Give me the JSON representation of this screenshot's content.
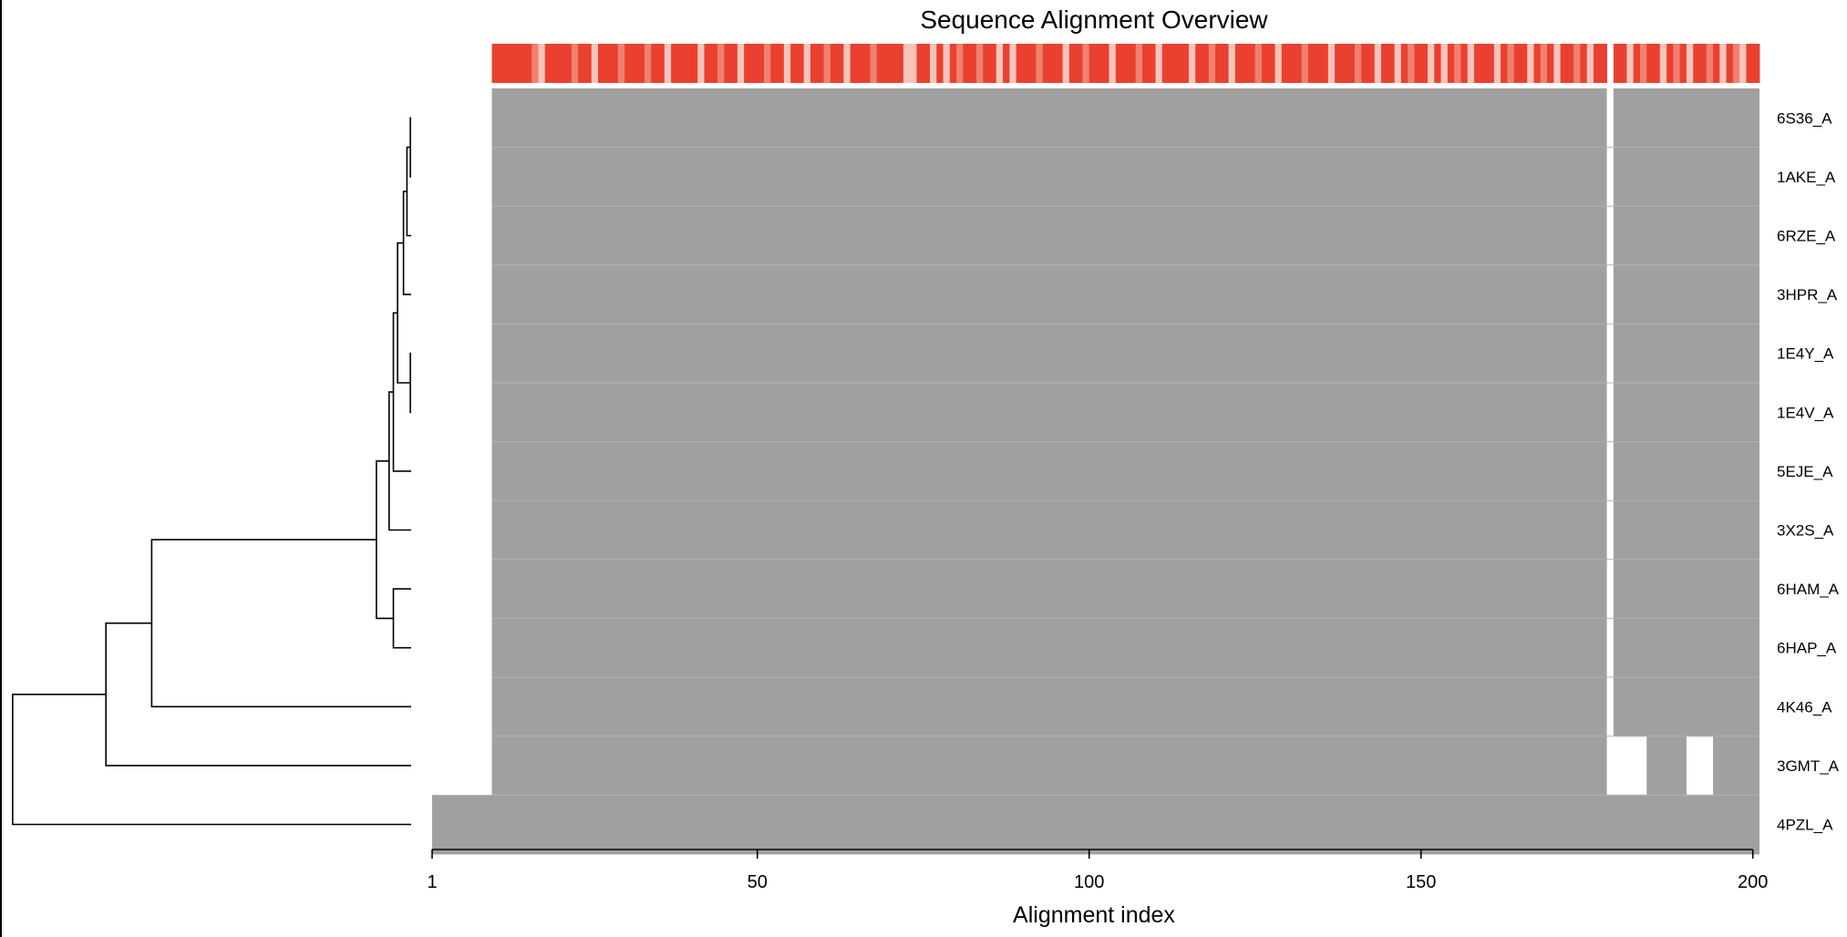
{
  "chart_data": {
    "type": "heatmap",
    "title": "Sequence Alignment Overview",
    "xlabel": "Alignment index",
    "ylabel": "",
    "xlim": [
      1,
      200
    ],
    "x_ticks": [
      {
        "value": 1,
        "label": "1"
      },
      {
        "value": 50,
        "label": "50"
      },
      {
        "value": 100,
        "label": "100"
      },
      {
        "value": 150,
        "label": "150"
      },
      {
        "value": 200,
        "label": "200"
      }
    ],
    "sequences": [
      {
        "label": "6S36_A",
        "segments": [
          [
            10,
            177
          ],
          [
            179,
            200
          ]
        ]
      },
      {
        "label": "1AKE_A",
        "segments": [
          [
            10,
            177
          ],
          [
            179,
            200
          ]
        ]
      },
      {
        "label": "6RZE_A",
        "segments": [
          [
            10,
            177
          ],
          [
            179,
            200
          ]
        ]
      },
      {
        "label": "3HPR_A",
        "segments": [
          [
            10,
            177
          ],
          [
            179,
            200
          ]
        ]
      },
      {
        "label": "1E4Y_A",
        "segments": [
          [
            10,
            177
          ],
          [
            179,
            200
          ]
        ]
      },
      {
        "label": "1E4V_A",
        "segments": [
          [
            10,
            177
          ],
          [
            179,
            200
          ]
        ]
      },
      {
        "label": "5EJE_A",
        "segments": [
          [
            10,
            177
          ],
          [
            179,
            200
          ]
        ]
      },
      {
        "label": "3X2S_A",
        "segments": [
          [
            10,
            177
          ],
          [
            179,
            200
          ]
        ]
      },
      {
        "label": "6HAM_A",
        "segments": [
          [
            10,
            177
          ],
          [
            179,
            200
          ]
        ]
      },
      {
        "label": "6HAP_A",
        "segments": [
          [
            10,
            177
          ],
          [
            179,
            200
          ]
        ]
      },
      {
        "label": "4K46_A",
        "segments": [
          [
            10,
            177
          ],
          [
            179,
            200
          ]
        ]
      },
      {
        "label": "3GMT_A",
        "segments": [
          [
            10,
            177
          ],
          [
            184,
            189
          ],
          [
            194,
            200
          ]
        ]
      },
      {
        "label": "4PZL_A",
        "segments": [
          [
            1,
            200
          ]
        ]
      }
    ],
    "conservation": {
      "gap_positions": [
        178
      ],
      "light_positions": [
        17,
        25,
        36,
        41,
        47,
        54,
        57,
        63,
        72,
        73,
        76,
        78,
        86,
        88,
        96,
        103,
        110,
        115,
        121,
        128,
        136,
        143,
        146,
        151,
        153,
        157,
        161,
        166,
        170,
        175,
        181,
        186,
        190,
        195,
        198
      ],
      "mid_positions": [
        16,
        22,
        29,
        33,
        44,
        51,
        60,
        67,
        80,
        83,
        92,
        99,
        107,
        118,
        125,
        132,
        140,
        148,
        155,
        163,
        168,
        173,
        183,
        188,
        193,
        197
      ]
    },
    "dendrogram": {
      "leaf_height": 0.0,
      "merges": [
        {
          "a": 0,
          "b": 1,
          "height": 0.01
        },
        {
          "a": "m0",
          "b": 2,
          "height": 0.05
        },
        {
          "a": "m1",
          "b": 3,
          "height": 0.09
        },
        {
          "a": 4,
          "b": 5,
          "height": 0.01
        },
        {
          "a": "m2",
          "b": "m3",
          "height": 0.16
        },
        {
          "a": "m4",
          "b": 6,
          "height": 0.21
        },
        {
          "a": "m5",
          "b": 7,
          "height": 0.26
        },
        {
          "a": 8,
          "b": 9,
          "height": 0.21
        },
        {
          "a": "m6",
          "b": "m7",
          "height": 0.41
        },
        {
          "a": "m8",
          "b": 10,
          "height": 3.06
        },
        {
          "a": "m9",
          "b": 11,
          "height": 3.6
        },
        {
          "a": "m10",
          "b": 12,
          "height": 4.7
        }
      ]
    },
    "colors": {
      "aligned": "#a0a0a0",
      "row_divider": "#b4b4b4",
      "conservation_high": "#ea4030",
      "conservation_mid": "#f08070",
      "conservation_low": "#f8c4ba",
      "line": "#000000"
    }
  }
}
